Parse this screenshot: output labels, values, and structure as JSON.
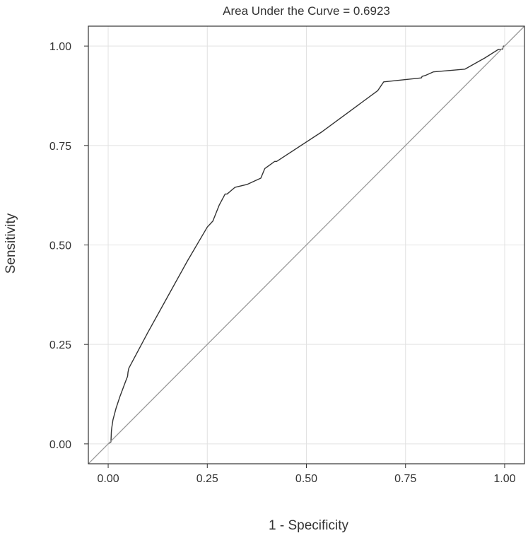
{
  "chart_data": {
    "type": "line",
    "title": "Area Under the Curve = 0.6923",
    "xlabel": "1 - Specificity",
    "ylabel": "Sensitivity",
    "xlim": [
      -0.05,
      1.05
    ],
    "ylim": [
      -0.05,
      1.05
    ],
    "xticks": [
      0.0,
      0.25,
      0.5,
      0.75,
      1.0
    ],
    "yticks": [
      0.0,
      0.25,
      0.5,
      0.75,
      1.0
    ],
    "xtick_labels": [
      "0.00",
      "0.25",
      "0.50",
      "0.75",
      "1.00"
    ],
    "ytick_labels": [
      "0.00",
      "0.25",
      "0.50",
      "0.75",
      "1.00"
    ],
    "grid": true,
    "series": [
      {
        "color": "#333333",
        "x": [
          0.0,
          0.007,
          0.008,
          0.009,
          0.012,
          0.02,
          0.03,
          0.045,
          0.049,
          0.05,
          0.052,
          0.1,
          0.15,
          0.2,
          0.25,
          0.264,
          0.28,
          0.295,
          0.3,
          0.32,
          0.35,
          0.385,
          0.395,
          0.42,
          0.425,
          0.54,
          0.68,
          0.695,
          0.79,
          0.792,
          0.8,
          0.82,
          0.9,
          0.95,
          0.985,
          0.995,
          0.997,
          1.0
        ],
        "y": [
          0.0,
          0.005,
          0.03,
          0.04,
          0.06,
          0.09,
          0.12,
          0.16,
          0.17,
          0.18,
          0.19,
          0.28,
          0.37,
          0.46,
          0.545,
          0.56,
          0.6,
          0.628,
          0.628,
          0.645,
          0.652,
          0.668,
          0.692,
          0.71,
          0.71,
          0.785,
          0.888,
          0.91,
          0.92,
          0.924,
          0.926,
          0.935,
          0.942,
          0.97,
          0.992,
          0.992,
          1.0,
          1.0
        ]
      },
      {
        "color": "#999999",
        "x": [
          -0.05,
          1.05
        ],
        "y": [
          -0.05,
          1.05
        ]
      }
    ]
  }
}
